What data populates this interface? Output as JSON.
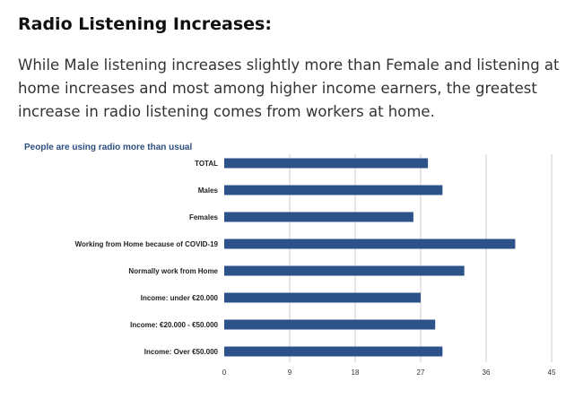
{
  "page": {
    "heading": "Radio Listening Increases:",
    "intro": "While Male listening increases slightly more than Female and listening at home increases and most among higher income earners, the greatest increase in radio listening comes from workers at home."
  },
  "colors": {
    "bar": "#2d5289",
    "title": "#2c4f80",
    "grid": "#cccccc"
  },
  "chart_data": {
    "type": "bar",
    "orientation": "horizontal",
    "title": "People are using radio more than usual",
    "categories": [
      "TOTAL",
      "Males",
      "Females",
      "Working from Home because of COVID-19",
      "Normally work from Home",
      "Income: under €20.000",
      "Income: €20.000 - €50.000",
      "Income: Over €50.000"
    ],
    "values": [
      28,
      30,
      26,
      40,
      33,
      27,
      29,
      30
    ],
    "xlim": [
      0,
      45
    ],
    "xticks": [
      0,
      9,
      18,
      27,
      36,
      45
    ],
    "grid": true,
    "legend": "none"
  }
}
